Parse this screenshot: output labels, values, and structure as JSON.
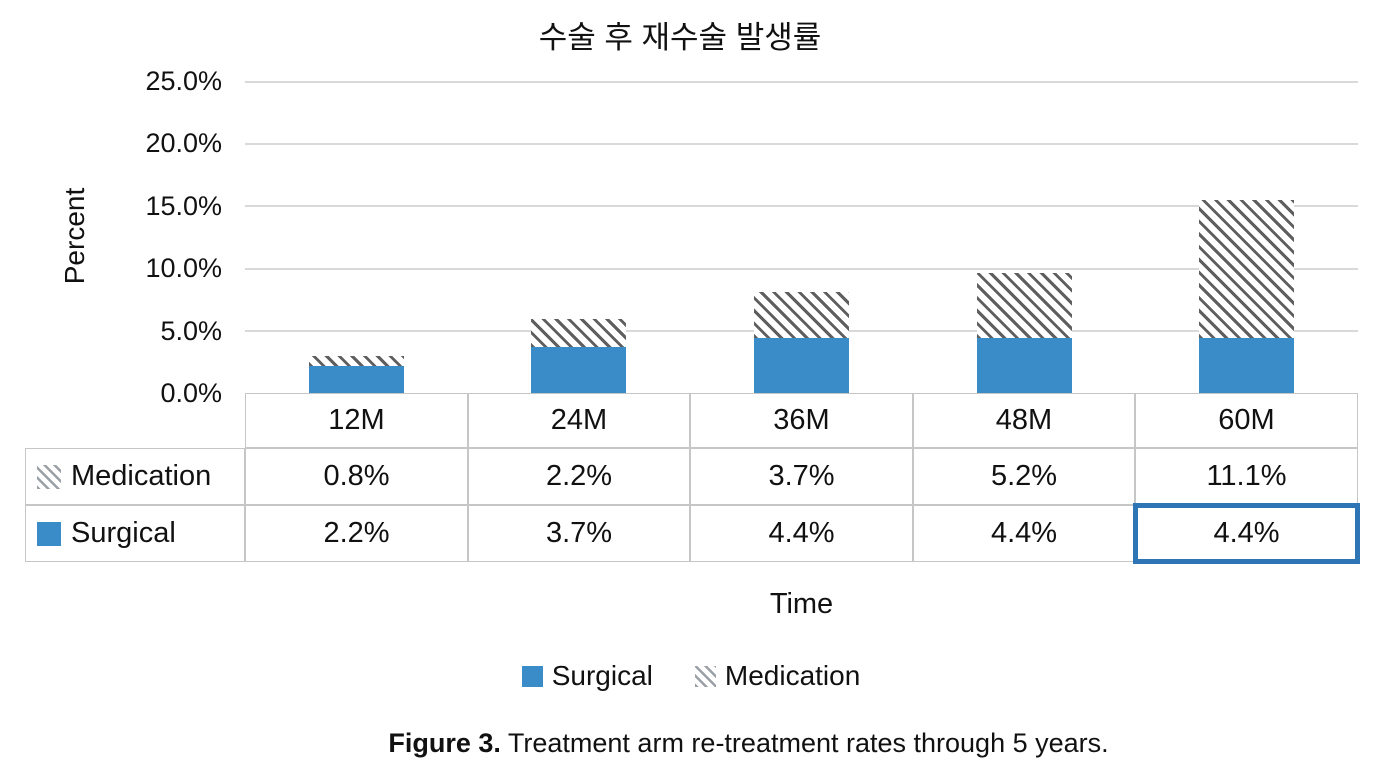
{
  "chart": {
    "title": "수술 후 재수술 발생률",
    "y_axis_label": "Percent",
    "x_axis_label": "Time",
    "y_ticks": [
      "25.0%",
      "20.0%",
      "15.0%",
      "10.0%",
      "5.0%",
      "0.0%"
    ]
  },
  "chart_data": {
    "type": "bar",
    "stacked": true,
    "title": "수술 후 재수술 발생률",
    "xlabel": "Time",
    "ylabel": "Percent",
    "categories": [
      "12M",
      "24M",
      "36M",
      "48M",
      "60M"
    ],
    "series": [
      {
        "name": "Surgical",
        "style": "solid-blue",
        "values": [
          2.2,
          3.7,
          4.4,
          4.4,
          4.4
        ]
      },
      {
        "name": "Medication",
        "style": "gray-diagonal-hatch",
        "values": [
          0.8,
          2.2,
          3.7,
          5.2,
          11.1
        ]
      }
    ],
    "value_unit": "%",
    "ylim": [
      0,
      25
    ],
    "y_tick_step": 5,
    "grid": true,
    "legend_position": "bottom"
  },
  "table": {
    "column_headers": [
      "12M",
      "24M",
      "36M",
      "48M",
      "60M"
    ],
    "rows": [
      {
        "label": "Medication",
        "swatch": "hatched",
        "values": [
          "0.8%",
          "2.2%",
          "3.7%",
          "5.2%",
          "11.1%"
        ]
      },
      {
        "label": "Surgical",
        "swatch": "solid",
        "values": [
          "2.2%",
          "3.7%",
          "4.4%",
          "4.4%",
          "4.4%"
        ]
      }
    ],
    "highlighted_cell": {
      "row": "Surgical",
      "column": "60M",
      "value": "4.4%"
    }
  },
  "legend": {
    "items": [
      {
        "label": "Surgical",
        "swatch": "solid"
      },
      {
        "label": "Medication",
        "swatch": "hatched"
      }
    ]
  },
  "caption": {
    "label": "Figure 3.",
    "text": "Treatment arm re-treatment rates through 5 years."
  },
  "colors": {
    "bar_blue": "#398cc8",
    "hatch_gray": "#5f5f5f",
    "grid_line": "#d9d9d9",
    "table_border": "#c6c6c6",
    "highlight_border": "#2e75b6"
  }
}
